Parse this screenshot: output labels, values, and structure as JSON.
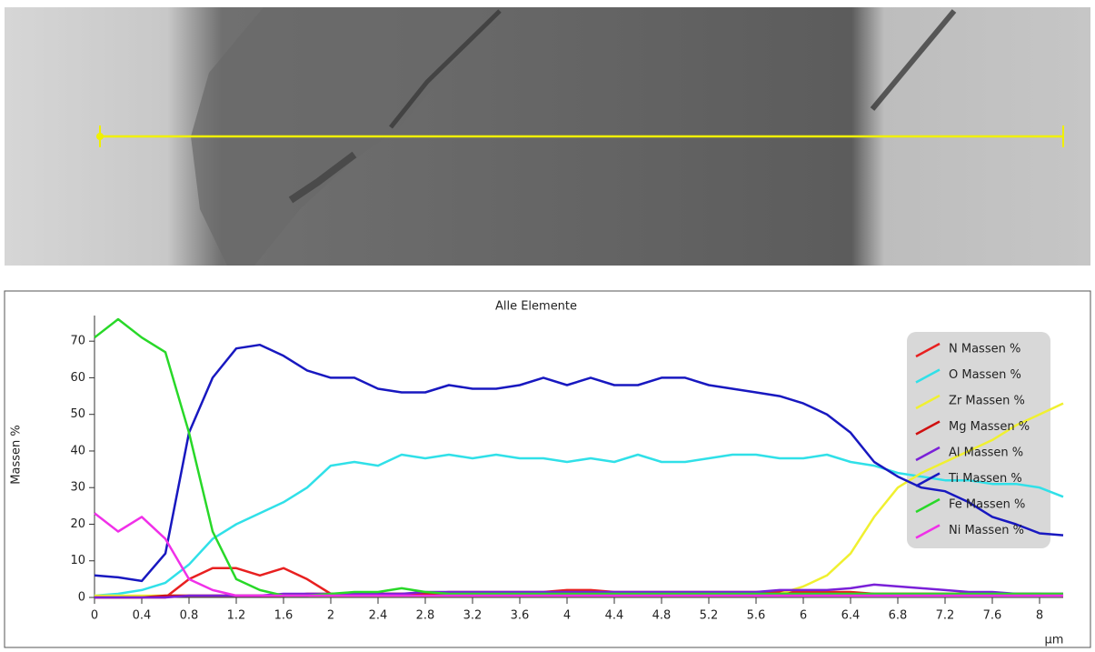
{
  "chart_data": {
    "type": "line",
    "title": "Alle Elemente",
    "y_label": "Massen %",
    "x_label": "µm",
    "x": [
      0,
      0.2,
      0.4,
      0.6,
      0.8,
      1,
      1.2,
      1.4,
      1.6,
      1.8,
      2,
      2.2,
      2.4,
      2.6,
      2.8,
      3,
      3.2,
      3.4,
      3.6,
      3.8,
      4,
      4.2,
      4.4,
      4.6,
      4.8,
      5,
      5.2,
      5.4,
      5.6,
      5.8,
      6,
      6.2,
      6.4,
      6.6,
      6.8,
      7,
      7.2,
      7.4,
      7.6,
      7.8,
      8,
      8.2
    ],
    "xlim": [
      0,
      8.2
    ],
    "ylim": [
      0,
      77
    ],
    "xticks": [
      0,
      0.4,
      0.8,
      1.2,
      1.6,
      2,
      2.4,
      2.8,
      3.2,
      3.6,
      4,
      4.4,
      4.8,
      5.2,
      5.6,
      6,
      6.4,
      6.8,
      7.2,
      7.6,
      8
    ],
    "yticks": [
      0,
      10,
      20,
      30,
      40,
      50,
      60,
      70
    ],
    "legend": "upper right",
    "series": [
      {
        "name": "N Massen %",
        "color": "#e82020",
        "values": [
          0,
          0,
          0,
          0,
          5,
          8,
          8,
          6,
          8,
          5,
          1,
          1,
          1,
          1,
          1,
          1.5,
          1.5,
          1.5,
          1.5,
          1.5,
          2,
          2,
          1.5,
          1.5,
          1.5,
          1.5,
          1.5,
          1.5,
          1.5,
          1.5,
          1.5,
          1.5,
          1.5,
          1,
          1,
          1,
          1,
          1,
          1,
          1,
          1,
          0.5
        ]
      },
      {
        "name": "O Massen %",
        "color": "#30e0e8",
        "values": [
          0.5,
          1,
          2,
          4,
          9,
          16,
          20,
          23,
          26,
          30,
          36,
          37,
          36,
          39,
          38,
          39,
          38,
          39,
          38,
          38,
          37,
          38,
          37,
          39,
          37,
          37,
          38,
          39,
          39,
          38,
          38,
          39,
          37,
          36,
          34,
          33,
          32,
          32,
          31,
          31,
          30,
          27.5
        ]
      },
      {
        "name": "Zr Massen %",
        "color": "#f0f030",
        "values": [
          0.5,
          0.5,
          0.5,
          0.5,
          0.5,
          0.5,
          0.5,
          0.5,
          0.5,
          0.5,
          0.5,
          0.5,
          0.5,
          0.5,
          0.5,
          0.5,
          0.5,
          0.5,
          0.5,
          0.5,
          0.5,
          0.5,
          0.5,
          0.5,
          0.5,
          0.5,
          0.5,
          0.5,
          0.5,
          1,
          3,
          6,
          12,
          22,
          30,
          34,
          37,
          40,
          43,
          47,
          50,
          53
        ]
      },
      {
        "name": "Mg Massen %",
        "color": "#d01010",
        "values": [
          0,
          0,
          0,
          0.5,
          0.5,
          0.5,
          0.5,
          0.5,
          0.5,
          1,
          1,
          1,
          1,
          1,
          1,
          1,
          1,
          1,
          1,
          1,
          1,
          1,
          1,
          1,
          1,
          1,
          1,
          1,
          1,
          1,
          1,
          1,
          1,
          1,
          1,
          1,
          1,
          1,
          1,
          1,
          1,
          1
        ]
      },
      {
        "name": "Al Massen %",
        "color": "#7a20d8",
        "values": [
          0,
          0,
          0,
          0,
          0.5,
          0.5,
          0.5,
          0.5,
          1,
          1,
          1,
          1,
          1,
          1,
          1.5,
          1.5,
          1.5,
          1.5,
          1.5,
          1.5,
          1.5,
          1.5,
          1.5,
          1.5,
          1.5,
          1.5,
          1.5,
          1.5,
          1.5,
          2,
          2,
          2,
          2.5,
          3.5,
          3,
          2.5,
          2,
          1.5,
          1.5,
          1,
          1,
          1
        ]
      },
      {
        "name": "Ti Massen %",
        "color": "#1818c0",
        "values": [
          6,
          5.5,
          4.5,
          12,
          45,
          60,
          68,
          69,
          66,
          62,
          60,
          60,
          57,
          56,
          56,
          58,
          57,
          57,
          58,
          60,
          58,
          60,
          58,
          58,
          60,
          60,
          58,
          57,
          56,
          55,
          53,
          50,
          45,
          37,
          33,
          30,
          29,
          26,
          22,
          20,
          17.5,
          17
        ]
      },
      {
        "name": "Fe Massen %",
        "color": "#28d828",
        "values": [
          71,
          76,
          71,
          67,
          45,
          18,
          5,
          2,
          0.5,
          0.5,
          1,
          1.5,
          1.5,
          2.5,
          1.5,
          1,
          1,
          1,
          1,
          1,
          1,
          1,
          1,
          1,
          1,
          1,
          1,
          1,
          1,
          1,
          1,
          1,
          1,
          1,
          1,
          1,
          1,
          1,
          1,
          1,
          1,
          1
        ]
      },
      {
        "name": "Ni Massen %",
        "color": "#f030e8",
        "values": [
          23,
          18,
          22,
          16,
          5,
          2,
          0.5,
          0.5,
          0.5,
          0.5,
          0.5,
          0.5,
          0.5,
          0.5,
          0.5,
          0.5,
          0.5,
          0.5,
          0.5,
          0.5,
          0.5,
          0.5,
          0.5,
          0.5,
          0.5,
          0.5,
          0.5,
          0.5,
          0.5,
          0.5,
          0.5,
          0.5,
          0.5,
          0.5,
          0.5,
          0.5,
          0.5,
          0.5,
          0.5,
          0.5,
          0.5,
          0.5
        ]
      }
    ]
  }
}
